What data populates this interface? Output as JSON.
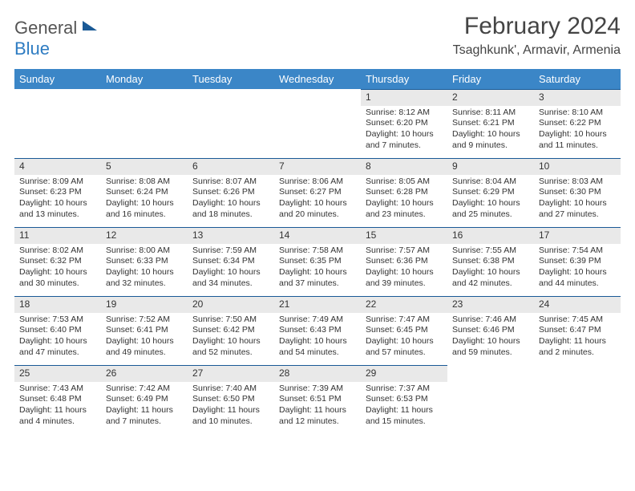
{
  "logo": {
    "part1": "General",
    "part2": "Blue"
  },
  "title": "February 2024",
  "location": "Tsaghkunk', Armavir, Armenia",
  "colors": {
    "header_bg": "#3b86c7",
    "header_text": "#ffffff",
    "daynum_bg": "#e9e9e9",
    "daynum_border": "#1a5a96",
    "body_text": "#333333"
  },
  "day_labels": [
    "Sunday",
    "Monday",
    "Tuesday",
    "Wednesday",
    "Thursday",
    "Friday",
    "Saturday"
  ],
  "weeks": [
    [
      null,
      null,
      null,
      null,
      {
        "n": "1",
        "sr": "Sunrise: 8:12 AM",
        "ss": "Sunset: 6:20 PM",
        "d1": "Daylight: 10 hours",
        "d2": "and 7 minutes."
      },
      {
        "n": "2",
        "sr": "Sunrise: 8:11 AM",
        "ss": "Sunset: 6:21 PM",
        "d1": "Daylight: 10 hours",
        "d2": "and 9 minutes."
      },
      {
        "n": "3",
        "sr": "Sunrise: 8:10 AM",
        "ss": "Sunset: 6:22 PM",
        "d1": "Daylight: 10 hours",
        "d2": "and 11 minutes."
      }
    ],
    [
      {
        "n": "4",
        "sr": "Sunrise: 8:09 AM",
        "ss": "Sunset: 6:23 PM",
        "d1": "Daylight: 10 hours",
        "d2": "and 13 minutes."
      },
      {
        "n": "5",
        "sr": "Sunrise: 8:08 AM",
        "ss": "Sunset: 6:24 PM",
        "d1": "Daylight: 10 hours",
        "d2": "and 16 minutes."
      },
      {
        "n": "6",
        "sr": "Sunrise: 8:07 AM",
        "ss": "Sunset: 6:26 PM",
        "d1": "Daylight: 10 hours",
        "d2": "and 18 minutes."
      },
      {
        "n": "7",
        "sr": "Sunrise: 8:06 AM",
        "ss": "Sunset: 6:27 PM",
        "d1": "Daylight: 10 hours",
        "d2": "and 20 minutes."
      },
      {
        "n": "8",
        "sr": "Sunrise: 8:05 AM",
        "ss": "Sunset: 6:28 PM",
        "d1": "Daylight: 10 hours",
        "d2": "and 23 minutes."
      },
      {
        "n": "9",
        "sr": "Sunrise: 8:04 AM",
        "ss": "Sunset: 6:29 PM",
        "d1": "Daylight: 10 hours",
        "d2": "and 25 minutes."
      },
      {
        "n": "10",
        "sr": "Sunrise: 8:03 AM",
        "ss": "Sunset: 6:30 PM",
        "d1": "Daylight: 10 hours",
        "d2": "and 27 minutes."
      }
    ],
    [
      {
        "n": "11",
        "sr": "Sunrise: 8:02 AM",
        "ss": "Sunset: 6:32 PM",
        "d1": "Daylight: 10 hours",
        "d2": "and 30 minutes."
      },
      {
        "n": "12",
        "sr": "Sunrise: 8:00 AM",
        "ss": "Sunset: 6:33 PM",
        "d1": "Daylight: 10 hours",
        "d2": "and 32 minutes."
      },
      {
        "n": "13",
        "sr": "Sunrise: 7:59 AM",
        "ss": "Sunset: 6:34 PM",
        "d1": "Daylight: 10 hours",
        "d2": "and 34 minutes."
      },
      {
        "n": "14",
        "sr": "Sunrise: 7:58 AM",
        "ss": "Sunset: 6:35 PM",
        "d1": "Daylight: 10 hours",
        "d2": "and 37 minutes."
      },
      {
        "n": "15",
        "sr": "Sunrise: 7:57 AM",
        "ss": "Sunset: 6:36 PM",
        "d1": "Daylight: 10 hours",
        "d2": "and 39 minutes."
      },
      {
        "n": "16",
        "sr": "Sunrise: 7:55 AM",
        "ss": "Sunset: 6:38 PM",
        "d1": "Daylight: 10 hours",
        "d2": "and 42 minutes."
      },
      {
        "n": "17",
        "sr": "Sunrise: 7:54 AM",
        "ss": "Sunset: 6:39 PM",
        "d1": "Daylight: 10 hours",
        "d2": "and 44 minutes."
      }
    ],
    [
      {
        "n": "18",
        "sr": "Sunrise: 7:53 AM",
        "ss": "Sunset: 6:40 PM",
        "d1": "Daylight: 10 hours",
        "d2": "and 47 minutes."
      },
      {
        "n": "19",
        "sr": "Sunrise: 7:52 AM",
        "ss": "Sunset: 6:41 PM",
        "d1": "Daylight: 10 hours",
        "d2": "and 49 minutes."
      },
      {
        "n": "20",
        "sr": "Sunrise: 7:50 AM",
        "ss": "Sunset: 6:42 PM",
        "d1": "Daylight: 10 hours",
        "d2": "and 52 minutes."
      },
      {
        "n": "21",
        "sr": "Sunrise: 7:49 AM",
        "ss": "Sunset: 6:43 PM",
        "d1": "Daylight: 10 hours",
        "d2": "and 54 minutes."
      },
      {
        "n": "22",
        "sr": "Sunrise: 7:47 AM",
        "ss": "Sunset: 6:45 PM",
        "d1": "Daylight: 10 hours",
        "d2": "and 57 minutes."
      },
      {
        "n": "23",
        "sr": "Sunrise: 7:46 AM",
        "ss": "Sunset: 6:46 PM",
        "d1": "Daylight: 10 hours",
        "d2": "and 59 minutes."
      },
      {
        "n": "24",
        "sr": "Sunrise: 7:45 AM",
        "ss": "Sunset: 6:47 PM",
        "d1": "Daylight: 11 hours",
        "d2": "and 2 minutes."
      }
    ],
    [
      {
        "n": "25",
        "sr": "Sunrise: 7:43 AM",
        "ss": "Sunset: 6:48 PM",
        "d1": "Daylight: 11 hours",
        "d2": "and 4 minutes."
      },
      {
        "n": "26",
        "sr": "Sunrise: 7:42 AM",
        "ss": "Sunset: 6:49 PM",
        "d1": "Daylight: 11 hours",
        "d2": "and 7 minutes."
      },
      {
        "n": "27",
        "sr": "Sunrise: 7:40 AM",
        "ss": "Sunset: 6:50 PM",
        "d1": "Daylight: 11 hours",
        "d2": "and 10 minutes."
      },
      {
        "n": "28",
        "sr": "Sunrise: 7:39 AM",
        "ss": "Sunset: 6:51 PM",
        "d1": "Daylight: 11 hours",
        "d2": "and 12 minutes."
      },
      {
        "n": "29",
        "sr": "Sunrise: 7:37 AM",
        "ss": "Sunset: 6:53 PM",
        "d1": "Daylight: 11 hours",
        "d2": "and 15 minutes."
      },
      null,
      null
    ]
  ]
}
